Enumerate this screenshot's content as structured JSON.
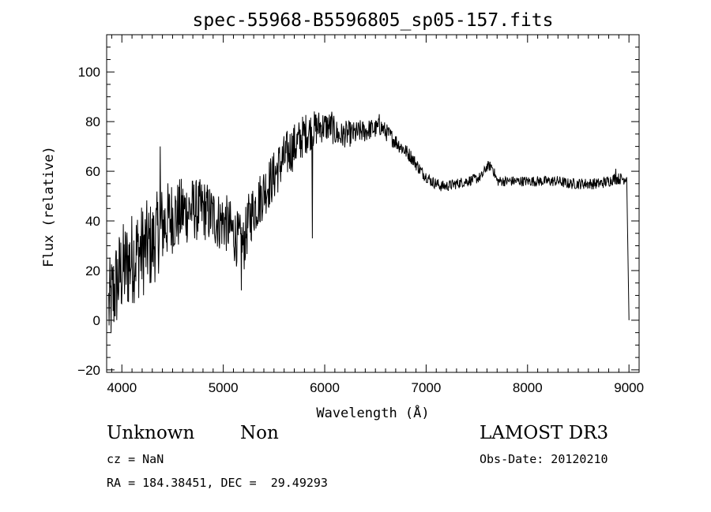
{
  "chart_data": {
    "type": "line",
    "title": "spec-55968-B5596805_sp05-157.fits",
    "xlabel": "Wavelength (Å)",
    "ylabel": "Flux (relative)",
    "xlim": [
      3850,
      9100
    ],
    "ylim": [
      -21,
      115
    ],
    "xticks": [
      4000,
      5000,
      6000,
      7000,
      8000,
      9000
    ],
    "xtick_labels": [
      "4000",
      "5000",
      "6000",
      "7000",
      "8000",
      "9000"
    ],
    "yticks": [
      -20,
      0,
      20,
      40,
      60,
      80,
      100
    ],
    "ytick_labels": [
      "−20",
      "0",
      "20",
      "40",
      "60",
      "80",
      "100"
    ],
    "grid": false,
    "series": [
      {
        "name": "flux",
        "anchors_x": [
          3870,
          3900,
          3950,
          4000,
          4050,
          4100,
          4150,
          4200,
          4250,
          4300,
          4350,
          4400,
          4450,
          4500,
          4550,
          4600,
          4650,
          4700,
          4750,
          4800,
          4850,
          4900,
          4950,
          5000,
          5050,
          5100,
          5150,
          5200,
          5250,
          5300,
          5350,
          5400,
          5450,
          5500,
          5550,
          5600,
          5650,
          5700,
          5750,
          5800,
          5850,
          5900,
          5950,
          6000,
          6050,
          6100,
          6150,
          6200,
          6250,
          6300,
          6350,
          6400,
          6450,
          6500,
          6550,
          6600,
          6650,
          6700,
          6750,
          6800,
          6850,
          6900,
          6950,
          7000,
          7050,
          7100,
          7150,
          7200,
          7300,
          7400,
          7500,
          7550,
          7600,
          7650,
          7700,
          7800,
          7900,
          8000,
          8100,
          8200,
          8300,
          8400,
          8500,
          8600,
          8700,
          8800,
          8850,
          8900,
          8950,
          8990
        ],
        "anchors_y": [
          5,
          8,
          15,
          20,
          22,
          25,
          27,
          28,
          30,
          30,
          35,
          38,
          40,
          42,
          42,
          44,
          44,
          45,
          44,
          45,
          43,
          42,
          40,
          40,
          38,
          35,
          32,
          30,
          40,
          45,
          48,
          52,
          55,
          58,
          62,
          65,
          68,
          70,
          72,
          75,
          76,
          77,
          78,
          78,
          78,
          76,
          74,
          75,
          75,
          75,
          76,
          76,
          77,
          77,
          78,
          76,
          74,
          72,
          70,
          68,
          66,
          63,
          60,
          58,
          56,
          55,
          54,
          54,
          55,
          56,
          57,
          58,
          62,
          62,
          56,
          56,
          56,
          56,
          56,
          56,
          56,
          55,
          55,
          55,
          55,
          56,
          57,
          57,
          57,
          58
        ],
        "noise_x": [
          3870,
          4200,
          4700,
          5300,
          5700,
          6000,
          6500,
          7000,
          7500,
          8000,
          8990
        ],
        "noise_amp": [
          12,
          12,
          8,
          7,
          6,
          4,
          2.5,
          1.5,
          1.3,
          1.3,
          1.5
        ],
        "features": [
          {
            "x": 4380,
            "y": 70
          },
          {
            "x": 4460,
            "y": 45
          },
          {
            "x": 5180,
            "y": 12
          },
          {
            "x": 5880,
            "y": 33
          },
          {
            "x": 6070,
            "y": 84
          },
          {
            "x": 6540,
            "y": 83
          },
          {
            "x": 8870,
            "y": 61
          },
          {
            "x": 9000,
            "y": 0
          }
        ]
      }
    ]
  },
  "info": {
    "object_class": "Unknown",
    "object_subclass": "Non",
    "survey": "LAMOST DR3",
    "cz": "cz = NaN",
    "obs_date": "Obs-Date: 20120210",
    "coords": "RA = 184.38451, DEC =  29.49293"
  }
}
